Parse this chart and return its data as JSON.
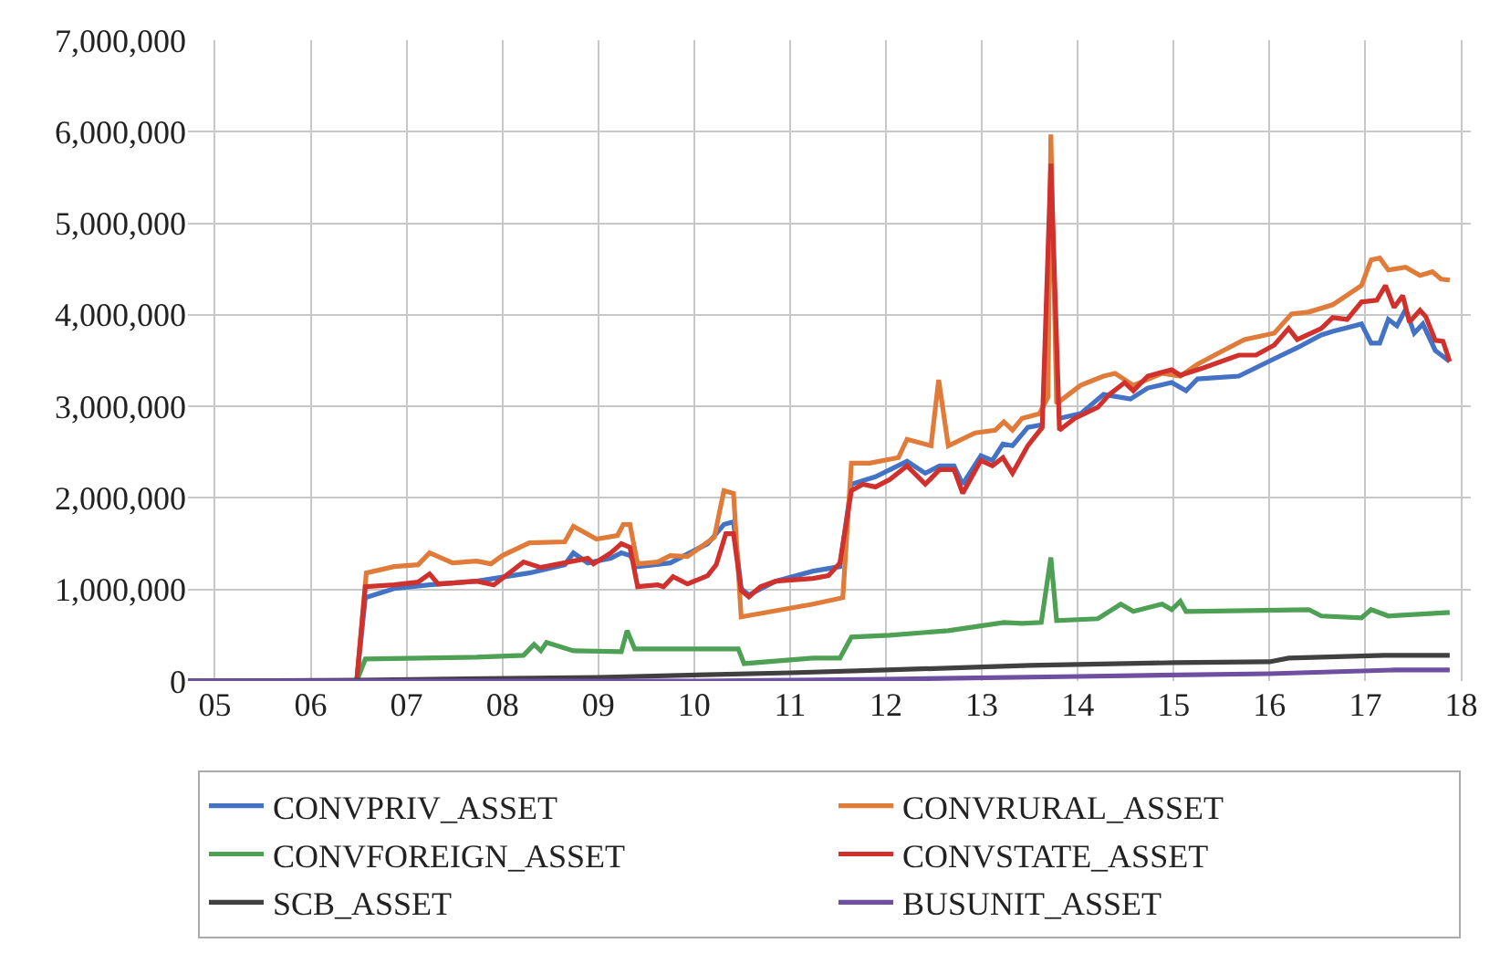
{
  "chart_data": {
    "type": "line",
    "xlim": [
      2004.72,
      2018.1
    ],
    "ylim": [
      0,
      7000000
    ],
    "xticks": [
      {
        "value": 2005,
        "label": "05"
      },
      {
        "value": 2006,
        "label": "06"
      },
      {
        "value": 2007,
        "label": "07"
      },
      {
        "value": 2008,
        "label": "08"
      },
      {
        "value": 2009,
        "label": "09"
      },
      {
        "value": 2010,
        "label": "10"
      },
      {
        "value": 2011,
        "label": "11"
      },
      {
        "value": 2012,
        "label": "12"
      },
      {
        "value": 2013,
        "label": "13"
      },
      {
        "value": 2014,
        "label": "14"
      },
      {
        "value": 2015,
        "label": "15"
      },
      {
        "value": 2016,
        "label": "16"
      },
      {
        "value": 2017,
        "label": "17"
      },
      {
        "value": 2018,
        "label": "18"
      }
    ],
    "yticks": [
      {
        "value": 0,
        "label": "0"
      },
      {
        "value": 1000000,
        "label": "1,000,000"
      },
      {
        "value": 2000000,
        "label": "2,000,000"
      },
      {
        "value": 3000000,
        "label": "3,000,000"
      },
      {
        "value": 4000000,
        "label": "4,000,000"
      },
      {
        "value": 5000000,
        "label": "5,000,000"
      },
      {
        "value": 6000000,
        "label": "6,000,000"
      },
      {
        "value": 7000000,
        "label": "7,000,000"
      }
    ],
    "grid": true,
    "legend": "bottom",
    "marker": "none",
    "line_style": "solid",
    "series": [
      {
        "name": "CONVPRIV_ASSET",
        "color": "#4472c4",
        "x": [
          2004.72,
          2006.48,
          2006.57,
          2006.87,
          2007.24,
          2007.73,
          2008.28,
          2008.65,
          2008.74,
          2008.89,
          2009.13,
          2009.24,
          2009.33,
          2009.41,
          2009.75,
          2010.14,
          2010.31,
          2010.41,
          2010.49,
          2010.57,
          2010.85,
          2011.24,
          2011.52,
          2011.64,
          2011.89,
          2012.22,
          2012.41,
          2012.56,
          2012.71,
          2012.8,
          2012.99,
          2013.11,
          2013.22,
          2013.32,
          2013.48,
          2013.63,
          2013.72,
          2013.81,
          2014.03,
          2014.27,
          2014.55,
          2014.73,
          2014.98,
          2015.13,
          2015.25,
          2015.68,
          2016.05,
          2016.29,
          2016.54,
          2016.66,
          2016.96,
          2017.06,
          2017.15,
          2017.24,
          2017.33,
          2017.42,
          2017.51,
          2017.6,
          2017.73,
          2017.88
        ],
        "values": [
          0,
          0,
          910000,
          1010000,
          1050000,
          1090000,
          1180000,
          1270000,
          1400000,
          1290000,
          1340000,
          1400000,
          1370000,
          1250000,
          1290000,
          1500000,
          1710000,
          1740000,
          1010000,
          940000,
          1090000,
          1200000,
          1250000,
          2150000,
          2230000,
          2400000,
          2270000,
          2350000,
          2350000,
          2150000,
          2460000,
          2410000,
          2590000,
          2570000,
          2770000,
          2800000,
          null,
          2870000,
          2920000,
          3130000,
          3080000,
          3200000,
          3260000,
          3170000,
          3300000,
          3330000,
          3520000,
          3640000,
          3780000,
          3820000,
          3900000,
          3690000,
          3690000,
          3950000,
          3880000,
          4060000,
          3800000,
          3900000,
          3610000,
          3490000
        ]
      },
      {
        "name": "CONVRURAL_ASSET",
        "color": "#e07b39",
        "x": [
          2004.72,
          2006.48,
          2006.58,
          2006.87,
          2007.12,
          2007.24,
          2007.48,
          2007.73,
          2007.88,
          2008.0,
          2008.28,
          2008.65,
          2008.74,
          2008.98,
          2009.2,
          2009.26,
          2009.33,
          2009.41,
          2009.62,
          2009.75,
          2009.93,
          2010.21,
          2010.31,
          2010.41,
          2010.49,
          2011.24,
          2011.55,
          2011.64,
          2011.83,
          2012.13,
          2012.22,
          2012.47,
          2012.55,
          2012.65,
          2012.93,
          2013.14,
          2013.23,
          2013.32,
          2013.42,
          2013.6,
          2013.69,
          2013.72,
          2013.78,
          2014.03,
          2014.27,
          2014.39,
          2014.58,
          2014.88,
          2015.07,
          2015.25,
          2015.5,
          2015.74,
          2016.05,
          2016.23,
          2016.41,
          2016.66,
          2016.96,
          2017.06,
          2017.15,
          2017.24,
          2017.42,
          2017.57,
          2017.7,
          2017.79,
          2017.88
        ],
        "values": [
          0,
          0,
          1180000,
          1250000,
          1270000,
          1400000,
          1290000,
          1310000,
          1280000,
          1370000,
          1510000,
          1520000,
          1690000,
          1550000,
          1590000,
          1710000,
          1710000,
          1280000,
          1300000,
          1370000,
          1360000,
          1570000,
          2080000,
          2050000,
          700000,
          840000,
          910000,
          2380000,
          2380000,
          2440000,
          2640000,
          2570000,
          3290000,
          2570000,
          2710000,
          2740000,
          2830000,
          2740000,
          2870000,
          2920000,
          3100000,
          5970000,
          3030000,
          3230000,
          3330000,
          3360000,
          3230000,
          3360000,
          3330000,
          3460000,
          3600000,
          3730000,
          3800000,
          4010000,
          4030000,
          4110000,
          4320000,
          4600000,
          4620000,
          4490000,
          4520000,
          4430000,
          4470000,
          4390000,
          4380000
        ]
      },
      {
        "name": "CONVFOREIGN_ASSET",
        "color": "#4ea054",
        "x": [
          2004.72,
          2006.48,
          2006.57,
          2007.73,
          2008.22,
          2008.33,
          2008.4,
          2008.46,
          2008.74,
          2009.24,
          2009.3,
          2009.38,
          2010.46,
          2010.52,
          2011.24,
          2011.52,
          2011.64,
          2012.04,
          2012.65,
          2013.23,
          2013.42,
          2013.62,
          2013.72,
          2013.78,
          2014.21,
          2014.45,
          2014.58,
          2014.88,
          2014.98,
          2015.07,
          2015.13,
          2016.41,
          2016.54,
          2016.96,
          2017.06,
          2017.24,
          2017.88
        ],
        "values": [
          0,
          0,
          240000,
          260000,
          280000,
          400000,
          330000,
          420000,
          330000,
          320000,
          550000,
          350000,
          350000,
          190000,
          250000,
          250000,
          480000,
          500000,
          550000,
          640000,
          630000,
          640000,
          1350000,
          660000,
          680000,
          840000,
          760000,
          840000,
          780000,
          870000,
          760000,
          780000,
          710000,
          690000,
          780000,
          710000,
          750000
        ]
      },
      {
        "name": "CONVSTATE_ASSET",
        "color": "#d0312d",
        "x": [
          2004.72,
          2006.48,
          2006.57,
          2006.87,
          2007.12,
          2007.24,
          2007.33,
          2007.73,
          2007.91,
          2008.22,
          2008.4,
          2008.74,
          2008.89,
          2008.95,
          2009.13,
          2009.24,
          2009.33,
          2009.41,
          2009.62,
          2009.68,
          2009.78,
          2009.93,
          2010.14,
          2010.23,
          2010.33,
          2010.41,
          2010.49,
          2010.57,
          2010.69,
          2010.85,
          2011.24,
          2011.4,
          2011.52,
          2011.64,
          2011.76,
          2011.89,
          2012.04,
          2012.22,
          2012.41,
          2012.56,
          2012.71,
          2012.8,
          2012.99,
          2013.11,
          2013.22,
          2013.32,
          2013.48,
          2013.63,
          2013.72,
          2013.81,
          2013.97,
          2014.21,
          2014.33,
          2014.49,
          2014.58,
          2014.73,
          2014.98,
          2015.07,
          2015.31,
          2015.68,
          2015.86,
          2016.05,
          2016.2,
          2016.29,
          2016.54,
          2016.66,
          2016.81,
          2016.96,
          2017.12,
          2017.21,
          2017.3,
          2017.39,
          2017.46,
          2017.57,
          2017.63,
          2017.73,
          2017.81,
          2017.88
        ],
        "values": [
          0,
          0,
          1030000,
          1050000,
          1080000,
          1170000,
          1060000,
          1090000,
          1050000,
          1300000,
          1240000,
          1310000,
          1340000,
          1280000,
          1400000,
          1500000,
          1460000,
          1030000,
          1050000,
          1030000,
          1140000,
          1060000,
          1150000,
          1270000,
          1610000,
          1610000,
          990000,
          920000,
          1030000,
          1090000,
          1120000,
          1150000,
          1290000,
          2080000,
          2150000,
          2120000,
          2200000,
          2350000,
          2150000,
          2310000,
          2310000,
          2050000,
          2410000,
          2350000,
          2440000,
          2270000,
          2570000,
          2770000,
          5650000,
          2740000,
          2870000,
          2990000,
          3130000,
          3260000,
          3170000,
          3330000,
          3400000,
          3340000,
          3420000,
          3560000,
          3560000,
          3670000,
          3850000,
          3730000,
          3850000,
          3970000,
          3950000,
          4140000,
          4160000,
          4320000,
          4080000,
          4210000,
          3920000,
          4050000,
          3980000,
          3720000,
          3710000,
          3490000
        ]
      },
      {
        "name": "SCB_ASSET",
        "color": "#404040",
        "x": [
          2004.72,
          2006.5,
          2009.0,
          2011.0,
          2012.0,
          2013.5,
          2015.0,
          2016.0,
          2016.2,
          2017.2,
          2017.88
        ],
        "values": [
          0,
          10000,
          40000,
          90000,
          120000,
          170000,
          200000,
          210000,
          250000,
          280000,
          280000
        ]
      },
      {
        "name": "BUSUNIT_ASSET",
        "color": "#6f4fa0",
        "x": [
          2004.72,
          2010.0,
          2012.0,
          2014.0,
          2016.0,
          2017.3,
          2017.88
        ],
        "values": [
          0,
          0,
          20000,
          50000,
          80000,
          120000,
          120000
        ]
      }
    ]
  }
}
